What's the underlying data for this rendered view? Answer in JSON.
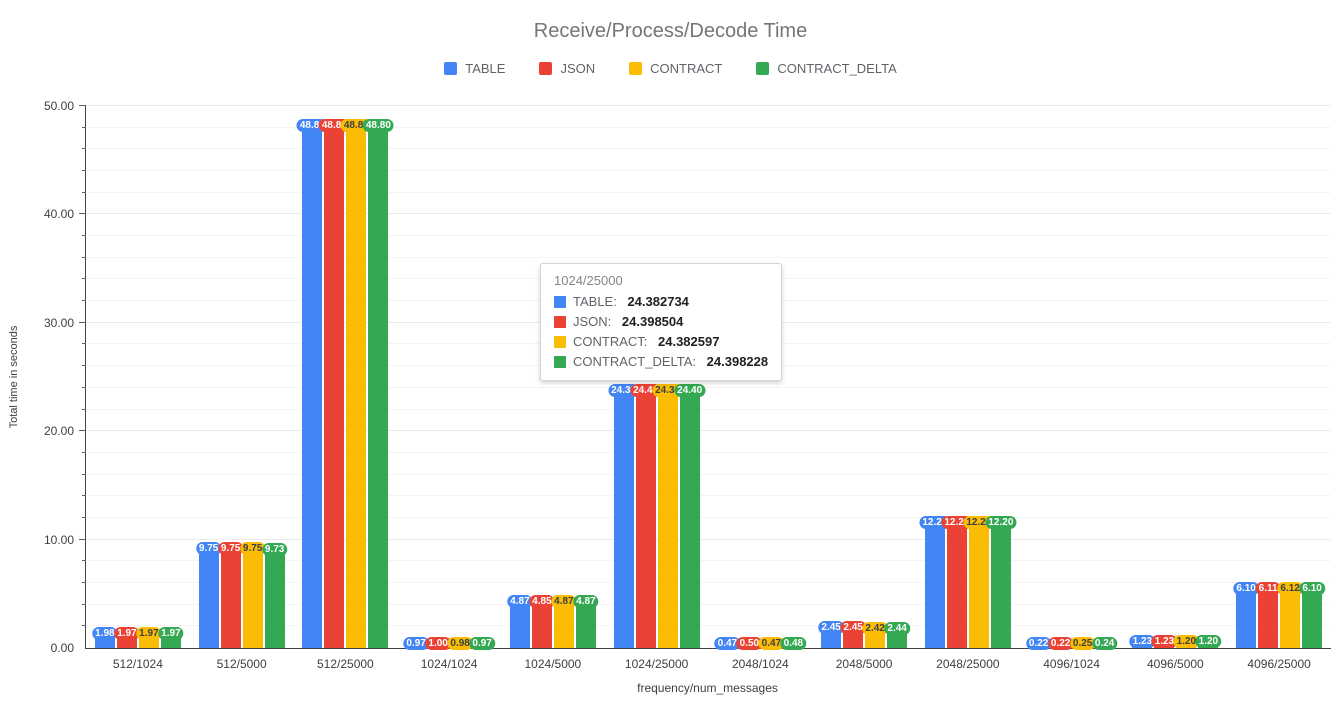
{
  "title": "Receive/Process/Decode Time",
  "legend": [
    {
      "label": "TABLE",
      "color": "#4285F4"
    },
    {
      "label": "JSON",
      "color": "#EA4335"
    },
    {
      "label": "CONTRACT",
      "color": "#FBBC04"
    },
    {
      "label": "CONTRACT_DELTA",
      "color": "#34A853"
    }
  ],
  "chart_data": {
    "type": "bar",
    "title": "Receive/Process/Decode Time",
    "xlabel": "frequency/num_messages",
    "ylabel": "Total time in seconds",
    "ylim": [
      0,
      50
    ],
    "grid": true,
    "legend_position": "top",
    "y_minor_step": 2,
    "y_ticks": [
      {
        "value": 0,
        "label": "0.00"
      },
      {
        "value": 10,
        "label": "10.00"
      },
      {
        "value": 20,
        "label": "20.00"
      },
      {
        "value": 30,
        "label": "30.00"
      },
      {
        "value": 40,
        "label": "40.00"
      },
      {
        "value": 50,
        "label": "50.00"
      }
    ],
    "categories": [
      "512/1024",
      "512/5000",
      "512/25000",
      "1024/1024",
      "1024/5000",
      "1024/25000",
      "2048/1024",
      "2048/5000",
      "2048/25000",
      "4096/1024",
      "4096/5000",
      "4096/25000"
    ],
    "series": [
      {
        "name": "TABLE",
        "color": "#4285F4",
        "label_text_color": "#ffffff",
        "values": [
          1.98,
          9.75,
          48.84,
          0.97,
          4.87,
          24.382734,
          0.47,
          2.45,
          12.21,
          0.22,
          1.23,
          6.1
        ],
        "labels": [
          "1.98",
          "9.75",
          "48.84",
          "0.97",
          "4.87",
          "24.38",
          "0.47",
          "2.45",
          "12.21",
          "0.22",
          "1.23",
          "6.10"
        ]
      },
      {
        "name": "JSON",
        "color": "#EA4335",
        "label_text_color": "#ffffff",
        "values": [
          1.97,
          9.75,
          48.84,
          1.0,
          4.85,
          24.398504,
          0.5,
          2.45,
          12.21,
          0.22,
          1.23,
          6.11
        ],
        "labels": [
          "1.97",
          "9.75",
          "48.84",
          "1.00",
          "4.85",
          "24.40",
          "0.50",
          "2.45",
          "12.21",
          "0.22",
          "1.23",
          "6.11"
        ]
      },
      {
        "name": "CONTRACT",
        "color": "#FBBC04",
        "label_text_color": "#3c4043",
        "values": [
          1.97,
          9.75,
          48.84,
          0.98,
          4.87,
          24.382597,
          0.47,
          2.42,
          12.21,
          0.25,
          1.2,
          6.12
        ],
        "labels": [
          "1.97",
          "9.75",
          "48.84",
          "0.98",
          "4.87",
          "24.38",
          "0.47",
          "2.42",
          "12.21",
          "0.25",
          "1.20",
          "6.12"
        ]
      },
      {
        "name": "CONTRACT_DELTA",
        "color": "#34A853",
        "label_text_color": "#ffffff",
        "values": [
          1.97,
          9.73,
          48.8,
          0.97,
          4.87,
          24.398228,
          0.48,
          2.44,
          12.2,
          0.24,
          1.2,
          6.1
        ],
        "labels": [
          "1.97",
          "9.73",
          "48.80",
          "0.97",
          "4.87",
          "24.40",
          "0.48",
          "2.44",
          "12.20",
          "0.24",
          "1.20",
          "6.10"
        ]
      }
    ]
  },
  "tooltip": {
    "title": "1024/25000",
    "rows": [
      {
        "name": "TABLE",
        "value": "24.382734",
        "color": "#4285F4"
      },
      {
        "name": "JSON",
        "value": "24.398504",
        "color": "#EA4335"
      },
      {
        "name": "CONTRACT",
        "value": "24.382597",
        "color": "#FBBC04"
      },
      {
        "name": "CONTRACT_DELTA",
        "value": "24.398228",
        "color": "#34A853"
      }
    ]
  }
}
